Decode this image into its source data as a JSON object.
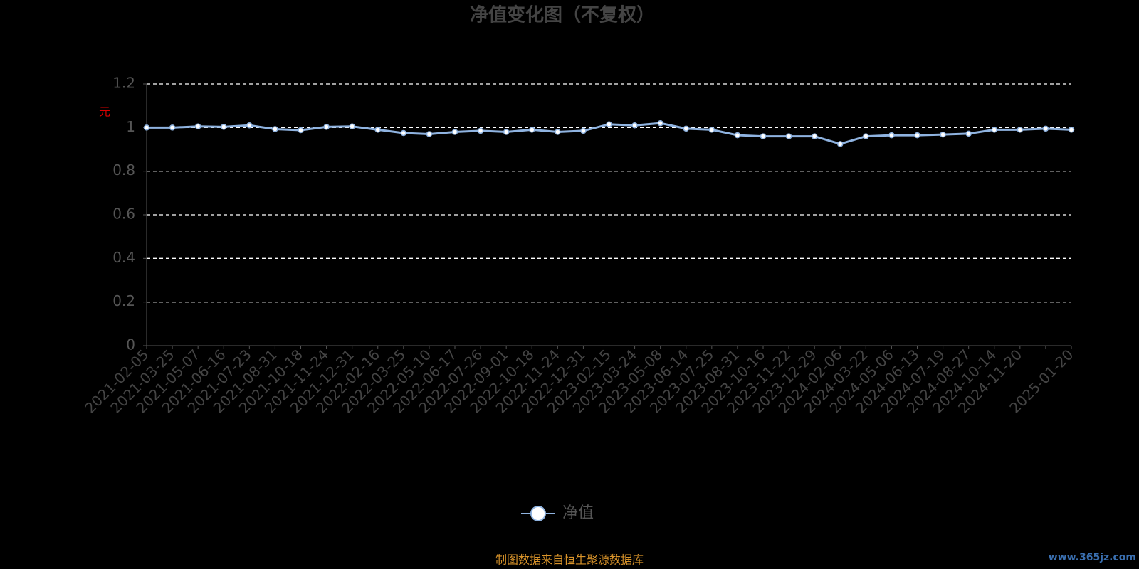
{
  "chart_data": {
    "type": "line",
    "title": "净值变化图（不复权）",
    "y_label": "元",
    "source_note": "制图数据来自恒生聚源数据库",
    "watermark": "www.365jz.com",
    "x": [
      "2021-02-05",
      "2021-03-25",
      "2021-05-07",
      "2021-06-16",
      "2021-07-23",
      "2021-08-31",
      "2021-10-18",
      "2021-11-24",
      "2021-12-31",
      "2022-02-16",
      "2022-03-25",
      "2022-05-10",
      "2022-06-17",
      "2022-07-26",
      "2022-09-01",
      "2022-10-18",
      "2022-11-24",
      "2022-12-31",
      "2023-02-15",
      "2023-03-24",
      "2023-05-08",
      "2023-06-14",
      "2023-07-25",
      "2023-08-31",
      "2023-10-16",
      "2023-11-22",
      "2023-12-29",
      "2024-02-06",
      "2024-03-22",
      "2024-05-06",
      "2024-06-13",
      "2024-07-19",
      "2024-08-27",
      "2024-10-14",
      "2024-11-20",
      null,
      "2025-01-20"
    ],
    "series": [
      {
        "name": "净值",
        "color": "#8fb3e0",
        "values": [
          1.0,
          1.0,
          1.005,
          1.003,
          1.01,
          0.993,
          0.988,
          1.003,
          1.005,
          0.99,
          0.975,
          0.97,
          0.98,
          0.985,
          0.98,
          0.99,
          0.98,
          0.985,
          1.015,
          1.01,
          1.02,
          0.995,
          0.99,
          0.965,
          0.96,
          0.96,
          0.96,
          0.925,
          0.96,
          0.965,
          0.965,
          0.968,
          0.972,
          0.99,
          0.99,
          0.995,
          0.99
        ]
      }
    ],
    "ylim": [
      0,
      1.2
    ],
    "yticks": [
      0,
      0.2,
      0.4,
      0.6,
      0.8,
      1,
      1.2
    ],
    "grid": true
  }
}
